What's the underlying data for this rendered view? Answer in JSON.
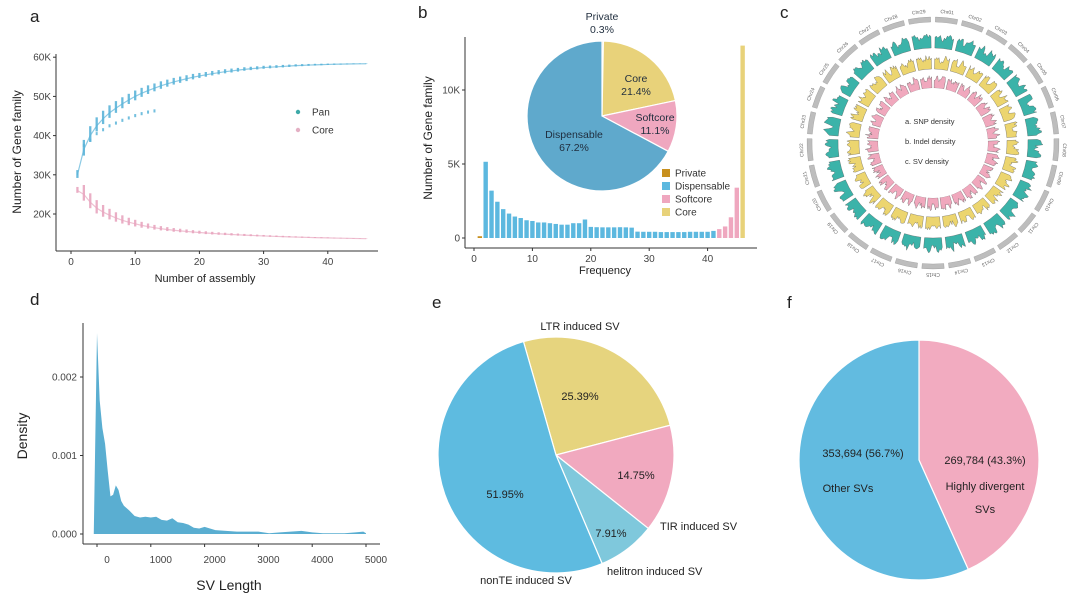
{
  "panels": {
    "a": "a",
    "b": "b",
    "c": "c",
    "d": "d",
    "e": "e",
    "f": "f"
  },
  "colors": {
    "pan": "#5bb4d9",
    "core_curve": "#e8a6bf",
    "private": "#c8901e",
    "dispensable": "#5cb8df",
    "dispensable_pie": "#5fa9cc",
    "softcore": "#efa7bf",
    "core": "#e8d27a",
    "snp": "#3bb3a9",
    "indel": "#ecd56f",
    "sv": "#f0a8bd",
    "chrom": "#bdbdbd",
    "density_fill": "#5aaed1",
    "nonTE": "#5ebbe0",
    "LTR": "#e6d47e",
    "TIR": "#f1a9bf",
    "helitron": "#7fc8dc",
    "other_svs": "#62bbe0",
    "highly_div": "#f2abc0"
  },
  "chart_data": [
    {
      "id": "a",
      "type": "scatter",
      "title": "",
      "xlabel": "Number of assembly",
      "ylabel": "Number of Gene family",
      "xlim": [
        0,
        47
      ],
      "ylim": [
        12000,
        60000
      ],
      "xticks": [
        0,
        10,
        20,
        30,
        40
      ],
      "yticks": [
        20000,
        30000,
        40000,
        50000,
        60000
      ],
      "ytick_labels": [
        "20K",
        "30K",
        "40K",
        "50K",
        "60K"
      ],
      "legend": {
        "position": "right",
        "entries": [
          "Pan",
          "Core"
        ]
      },
      "series": [
        {
          "name": "Pan",
          "x": [
            1,
            2,
            3,
            4,
            5,
            6,
            7,
            8,
            9,
            10,
            11,
            12,
            13,
            14,
            15,
            16,
            17,
            18,
            19,
            20,
            21,
            22,
            23,
            24,
            25,
            26,
            27,
            28,
            29,
            30,
            31,
            32,
            33,
            34,
            35,
            36,
            37,
            38,
            39,
            40,
            41,
            42,
            43,
            44,
            45,
            46
          ],
          "mean": [
            30000,
            36500,
            40000,
            42500,
            44300,
            45800,
            47000,
            48100,
            49100,
            50000,
            50800,
            51500,
            52100,
            52700,
            53200,
            53700,
            54100,
            54500,
            54900,
            55200,
            55500,
            55800,
            56050,
            56300,
            56500,
            56700,
            56900,
            57050,
            57200,
            57350,
            57450,
            57550,
            57650,
            57750,
            57850,
            57920,
            57990,
            58050,
            58100,
            58150,
            58200,
            58230,
            58260,
            58290,
            58310,
            58330
          ],
          "spread": [
            2000,
            4000,
            4000,
            3600,
            3400,
            3200,
            3000,
            2800,
            2600,
            2500,
            2300,
            2200,
            2000,
            1900,
            1800,
            1700,
            1600,
            1500,
            1400,
            1300,
            1200,
            1150,
            1100,
            1050,
            1000,
            950,
            900,
            850,
            800,
            760,
            720,
            680,
            640,
            600,
            560,
            520,
            480,
            440,
            400,
            360,
            320,
            280,
            240,
            200,
            150,
            100
          ]
        },
        {
          "name": "Core",
          "x": [
            1,
            2,
            3,
            4,
            5,
            6,
            7,
            8,
            9,
            10,
            11,
            12,
            13,
            14,
            15,
            16,
            17,
            18,
            19,
            20,
            21,
            22,
            23,
            24,
            25,
            26,
            27,
            28,
            29,
            30,
            31,
            32,
            33,
            34,
            35,
            36,
            37,
            38,
            39,
            40,
            41,
            42,
            43,
            44,
            45,
            46
          ],
          "mean": [
            26000,
            25000,
            23000,
            21500,
            20500,
            19700,
            19000,
            18400,
            17900,
            17500,
            17100,
            16800,
            16500,
            16250,
            16050,
            15850,
            15700,
            15550,
            15400,
            15280,
            15160,
            15050,
            14950,
            14860,
            14770,
            14690,
            14610,
            14540,
            14470,
            14400,
            14340,
            14280,
            14220,
            14170,
            14120,
            14070,
            14020,
            13980,
            13940,
            13900,
            13860,
            13830,
            13800,
            13770,
            13740,
            13700
          ],
          "spread": [
            1500,
            4000,
            3800,
            3400,
            3000,
            2700,
            2400,
            2100,
            1900,
            1700,
            1500,
            1300,
            1200,
            1100,
            1000,
            950,
            900,
            850,
            800,
            760,
            720,
            680,
            640,
            600,
            570,
            540,
            510,
            480,
            450,
            420,
            400,
            380,
            360,
            340,
            320,
            300,
            280,
            260,
            240,
            220,
            200,
            180,
            160,
            140,
            120,
            80
          ]
        }
      ]
    },
    {
      "id": "b",
      "type": "bar",
      "xlabel": "Frequency",
      "ylabel": "Number of Gene family",
      "xlim": [
        0,
        47
      ],
      "ylim": [
        0,
        13500
      ],
      "xticks": [
        0,
        10,
        20,
        30,
        40
      ],
      "yticks": [
        0,
        5000,
        10000
      ],
      "ytick_labels": [
        "0",
        "5K",
        "10K"
      ],
      "categories": [
        1,
        2,
        3,
        4,
        5,
        6,
        7,
        8,
        9,
        10,
        11,
        12,
        13,
        14,
        15,
        16,
        17,
        18,
        19,
        20,
        21,
        22,
        23,
        24,
        25,
        26,
        27,
        28,
        29,
        30,
        31,
        32,
        33,
        34,
        35,
        36,
        37,
        38,
        39,
        40,
        41,
        42,
        43,
        44,
        45,
        46
      ],
      "values": [
        120,
        5150,
        3200,
        2450,
        1950,
        1650,
        1450,
        1350,
        1200,
        1150,
        1050,
        1050,
        1000,
        950,
        900,
        900,
        1000,
        1000,
        1250,
        750,
        730,
        720,
        720,
        720,
        730,
        720,
        700,
        430,
        420,
        420,
        420,
        400,
        400,
        400,
        400,
        400,
        420,
        420,
        420,
        420,
        480,
        600,
        780,
        1400,
        3400,
        13000
      ],
      "groups": [
        "Private",
        "Dispensable",
        "Dispensable",
        "Dispensable",
        "Dispensable",
        "Dispensable",
        "Dispensable",
        "Dispensable",
        "Dispensable",
        "Dispensable",
        "Dispensable",
        "Dispensable",
        "Dispensable",
        "Dispensable",
        "Dispensable",
        "Dispensable",
        "Dispensable",
        "Dispensable",
        "Dispensable",
        "Dispensable",
        "Dispensable",
        "Dispensable",
        "Dispensable",
        "Dispensable",
        "Dispensable",
        "Dispensable",
        "Dispensable",
        "Dispensable",
        "Dispensable",
        "Dispensable",
        "Dispensable",
        "Dispensable",
        "Dispensable",
        "Dispensable",
        "Dispensable",
        "Dispensable",
        "Dispensable",
        "Dispensable",
        "Dispensable",
        "Dispensable",
        "Dispensable",
        "Softcore",
        "Softcore",
        "Softcore",
        "Softcore",
        "Core"
      ],
      "legend": {
        "position": "right",
        "entries": [
          "Private",
          "Dispensable",
          "Softcore",
          "Core"
        ]
      },
      "inset_pie": {
        "type": "pie",
        "slices": [
          {
            "label": "Private",
            "value": 0.3,
            "text": "0.3%"
          },
          {
            "label": "Core",
            "value": 21.4,
            "text": "21.4%"
          },
          {
            "label": "Softcore",
            "value": 11.1,
            "text": "11.1%"
          },
          {
            "label": "Dispensable",
            "value": 67.2,
            "text": "67.2%"
          }
        ]
      }
    },
    {
      "id": "c",
      "type": "circos",
      "chromosomes": [
        "Chr01",
        "Chr02",
        "Chr03",
        "Chr04",
        "Chr05",
        "Chr06",
        "Chr07",
        "Chr08",
        "Chr09",
        "Chr10",
        "Chr11",
        "Chr12",
        "Chr13",
        "Chr14",
        "Chr15",
        "Chr16",
        "Chr17",
        "Chr18",
        "Chr19",
        "Chr20",
        "Chr21",
        "Chr22",
        "Chr23",
        "Chr24",
        "Chr25",
        "Chr26",
        "Chr27",
        "Chr28",
        "Chr29"
      ],
      "tracks": [
        {
          "key": "a",
          "name": "SNP density"
        },
        {
          "key": "b",
          "name": "Indel density"
        },
        {
          "key": "c",
          "name": "SV density"
        }
      ],
      "center_labels": [
        "a. SNP density",
        "b. Indel density",
        "c. SV density"
      ]
    },
    {
      "id": "d",
      "type": "area",
      "xlabel": "SV Length",
      "ylabel": "Density",
      "xlim": [
        -250,
        5150
      ],
      "ylim": [
        0,
        0.0027
      ],
      "xticks": [
        0,
        1000,
        2000,
        3000,
        4000,
        5000
      ],
      "yticks": [
        0.0,
        0.001,
        0.002
      ],
      "ytick_labels": [
        "0.000",
        "0.001",
        "0.002"
      ],
      "x": [
        -60,
        0,
        50,
        100,
        150,
        200,
        250,
        300,
        350,
        400,
        450,
        500,
        550,
        600,
        700,
        800,
        900,
        1000,
        1100,
        1200,
        1300,
        1400,
        1500,
        1600,
        1700,
        1800,
        1900,
        2000,
        2100,
        2200,
        2400,
        2600,
        2800,
        3000,
        3200,
        3400,
        3600,
        3800,
        4000,
        4200,
        4400,
        4600,
        4800,
        4950,
        5000
      ],
      "y": [
        0,
        0.00256,
        0.0017,
        0.00135,
        0.00115,
        0.0008,
        0.00048,
        0.0005,
        0.00062,
        0.00056,
        0.00042,
        0.00036,
        0.00033,
        0.0003,
        0.00023,
        0.00021,
        0.00022,
        0.00021,
        0.00022,
        0.00018,
        0.00017,
        0.0002,
        0.00015,
        0.00014,
        0.00012,
        8e-05,
        7e-05,
        9e-05,
        7e-05,
        5e-05,
        4e-05,
        3e-05,
        3e-05,
        3e-05,
        1e-05,
        2e-05,
        3e-05,
        4e-05,
        2e-05,
        1e-05,
        1e-05,
        1e-05,
        2e-05,
        3e-05,
        1e-05
      ]
    },
    {
      "id": "e",
      "type": "pie",
      "slices": [
        {
          "label": "LTR induced SV",
          "value": 25.39,
          "text": "25.39%"
        },
        {
          "label": "TIR induced SV",
          "value": 14.75,
          "text": "14.75%"
        },
        {
          "label": "helitron induced SV",
          "value": 7.91,
          "text": "7.91%"
        },
        {
          "label": "nonTE induced SV",
          "value": 51.95,
          "text": "51.95%"
        }
      ]
    },
    {
      "id": "f",
      "type": "pie",
      "slices": [
        {
          "label": "Highly divergent SVs",
          "value": 269784,
          "text": "269,784 (43.3%)",
          "label_lines": [
            "Highly divergent",
            "SVs"
          ]
        },
        {
          "label": "Other SVs",
          "value": 353694,
          "text": "353,694 (56.7%)",
          "label_lines": [
            "Other SVs"
          ]
        }
      ]
    }
  ]
}
